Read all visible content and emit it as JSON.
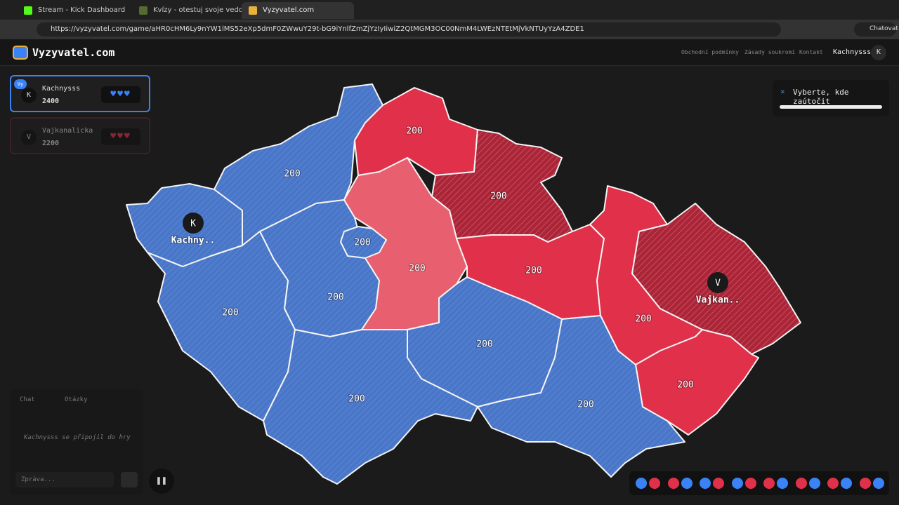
{
  "browser": {
    "tabs": [
      "Stream - Kick Dashboard",
      "Kvízy - otestuj svoje vedomosti! - K",
      "Vyzyvatel.com"
    ],
    "url": "https://vyzyvatel.com/game/aHR0cHM6Ly9nYW1lMS52eXp5dmF0ZWwuY29t-bG9iYnlfZmZjYzIyIiwiZ2QtMGM3OC00NmM4LWEzNTEtMjVkNTUyYzA4ZDE1",
    "chat_button": "Chatovat"
  },
  "header": {
    "logo": "Vyzyvatel.com",
    "nav": [
      "Obchodní podmínky",
      "Zásady soukromí",
      "Kontakt"
    ],
    "user": "Kachnysss",
    "avatar": "K"
  },
  "players": [
    {
      "badge": "Vy",
      "initial": "K",
      "name": "Kachnysss",
      "score": 2400
    },
    {
      "initial": "V",
      "name": "Vajkanalicka",
      "score": 2200
    }
  ],
  "prompt": "Vyberte, kde zaútočit",
  "map": {
    "regions": [
      {
        "value": 200
      },
      {
        "value": 200
      },
      {
        "value": 200
      },
      {
        "value": 200
      },
      {
        "value": 200
      },
      {
        "value": 200
      },
      {
        "value": 200
      },
      {
        "value": 200
      },
      {
        "value": 200
      },
      {
        "value": 200
      },
      {
        "value": 200
      },
      {
        "value": 200
      },
      {
        "value": 200
      }
    ],
    "markers": [
      {
        "initial": "K",
        "name": "Kachny.."
      },
      {
        "initial": "V",
        "name": "Vajkan.."
      }
    ]
  },
  "chat": {
    "tabs": [
      "Chat",
      "Otázky"
    ],
    "messages": [
      "Kachnysss se připojil do hry"
    ],
    "placeholder": "Zpráva..."
  }
}
